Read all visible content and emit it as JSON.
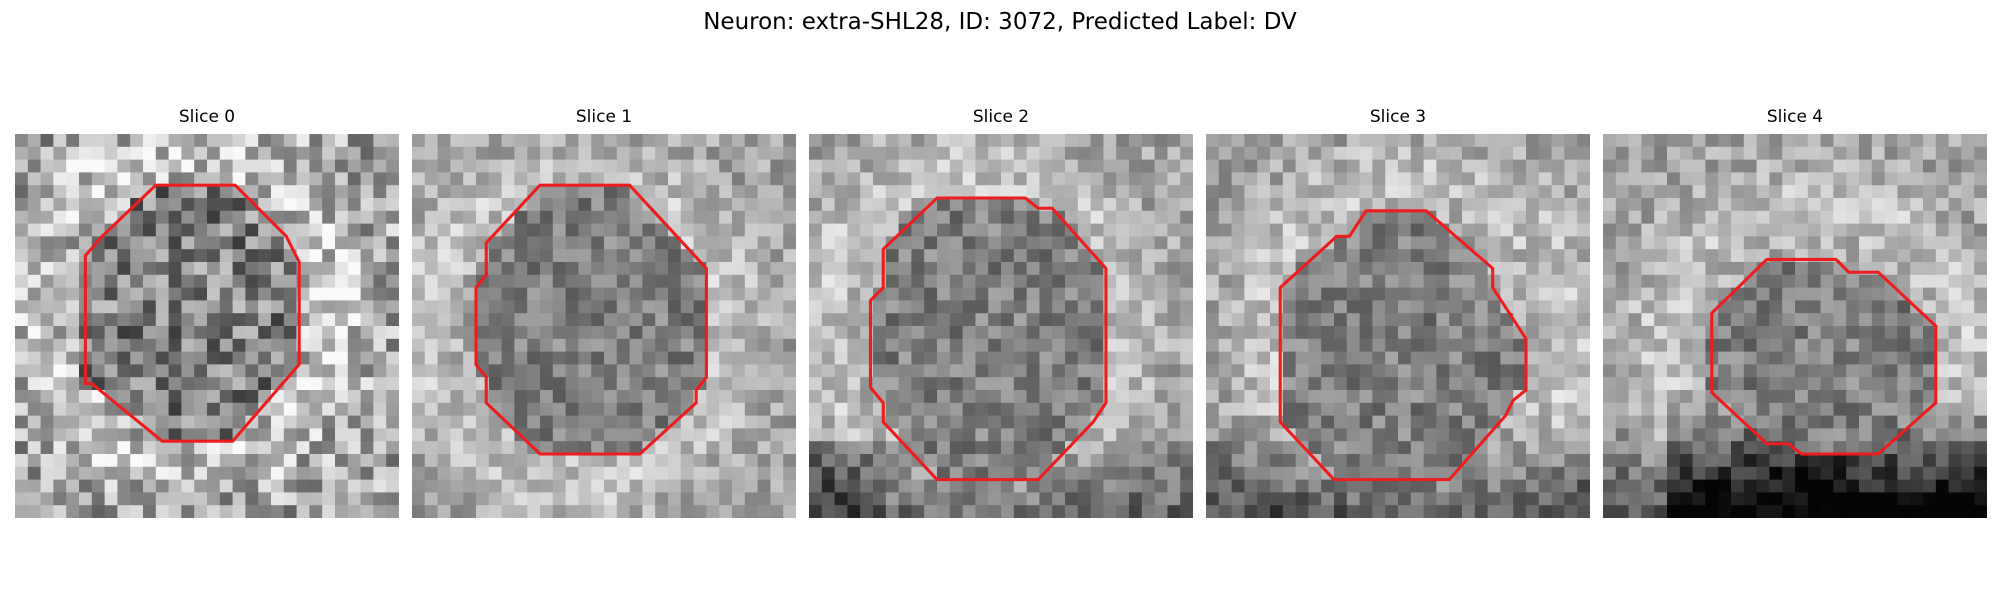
{
  "figure": {
    "title": "Neuron: extra-SHL28, ID: 3072, Predicted Label: DV",
    "contour_color": "#ee1c1c",
    "colormap": "gray"
  },
  "slices": [
    {
      "label": "Slice 0"
    },
    {
      "label": "Slice 1"
    },
    {
      "label": "Slice 2"
    },
    {
      "label": "Slice 3"
    },
    {
      "label": "Slice 4"
    }
  ]
}
